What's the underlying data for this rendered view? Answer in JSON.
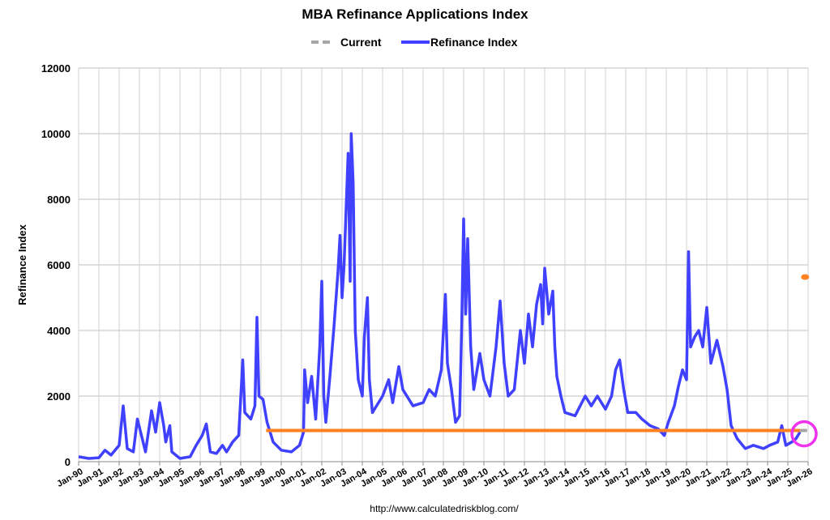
{
  "chart_data": {
    "type": "line",
    "title": "MBA Refinance Applications Index",
    "ylabel": "Refinance Index",
    "xlabel": "",
    "source": "http://www.calculatedriskblog.com/",
    "ylim": [
      0,
      12000
    ],
    "xlim": [
      1990,
      2026
    ],
    "yticks": [
      0,
      2000,
      4000,
      6000,
      8000,
      10000,
      12000
    ],
    "xtick_labels": [
      "Jan-90",
      "Jan-91",
      "Jan-92",
      "Jan-93",
      "Jan-94",
      "Jan-95",
      "Jan-96",
      "Jan-97",
      "Jan-98",
      "Jan-99",
      "Jan-00",
      "Jan-01",
      "Jan-02",
      "Jan-03",
      "Jan-04",
      "Jan-05",
      "Jan-06",
      "Jan-07",
      "Jan-08",
      "Jan-09",
      "Jan-10",
      "Jan-11",
      "Jan-12",
      "Jan-13",
      "Jan-14",
      "Jan-15",
      "Jan-16",
      "Jan-17",
      "Jan-18",
      "Jan-19",
      "Jan-20",
      "Jan-21",
      "Jan-22",
      "Jan-23",
      "Jan-24",
      "Jan-25",
      "Jan-26"
    ],
    "grid": true,
    "legend": {
      "placement": "top-center",
      "entries": [
        {
          "name": "Current",
          "color": "#a6a6a6",
          "style": "dashed"
        },
        {
          "name": "Refinance Index",
          "color": "#4040ff",
          "style": "solid"
        }
      ]
    },
    "series": [
      {
        "name": "Refinance Index",
        "color": "#4040ff",
        "points": [
          [
            1990.0,
            150
          ],
          [
            1990.5,
            100
          ],
          [
            1991.0,
            120
          ],
          [
            1991.3,
            350
          ],
          [
            1991.6,
            200
          ],
          [
            1992.0,
            500
          ],
          [
            1992.2,
            1700
          ],
          [
            1992.4,
            400
          ],
          [
            1992.7,
            300
          ],
          [
            1992.9,
            1300
          ],
          [
            1993.1,
            800
          ],
          [
            1993.3,
            300
          ],
          [
            1993.6,
            1550
          ],
          [
            1993.8,
            900
          ],
          [
            1994.0,
            1800
          ],
          [
            1994.2,
            1100
          ],
          [
            1994.3,
            600
          ],
          [
            1994.5,
            1100
          ],
          [
            1994.6,
            300
          ],
          [
            1995.0,
            100
          ],
          [
            1995.5,
            150
          ],
          [
            1995.8,
            500
          ],
          [
            1996.1,
            800
          ],
          [
            1996.3,
            1150
          ],
          [
            1996.5,
            300
          ],
          [
            1996.8,
            250
          ],
          [
            1997.1,
            500
          ],
          [
            1997.3,
            300
          ],
          [
            1997.6,
            600
          ],
          [
            1997.9,
            800
          ],
          [
            1998.1,
            3100
          ],
          [
            1998.2,
            1500
          ],
          [
            1998.5,
            1300
          ],
          [
            1998.7,
            1700
          ],
          [
            1998.8,
            4400
          ],
          [
            1998.9,
            2000
          ],
          [
            1999.1,
            1900
          ],
          [
            1999.3,
            1200
          ],
          [
            1999.6,
            600
          ],
          [
            2000.0,
            350
          ],
          [
            2000.5,
            300
          ],
          [
            2000.9,
            500
          ],
          [
            2001.1,
            900
          ],
          [
            2001.15,
            2800
          ],
          [
            2001.3,
            1800
          ],
          [
            2001.5,
            2600
          ],
          [
            2001.7,
            1300
          ],
          [
            2001.9,
            3500
          ],
          [
            2002.0,
            5500
          ],
          [
            2002.1,
            2000
          ],
          [
            2002.2,
            1200
          ],
          [
            2002.4,
            2600
          ],
          [
            2002.6,
            4100
          ],
          [
            2002.8,
            5800
          ],
          [
            2002.9,
            6900
          ],
          [
            2003.0,
            5000
          ],
          [
            2003.1,
            6000
          ],
          [
            2003.3,
            9400
          ],
          [
            2003.4,
            5500
          ],
          [
            2003.45,
            10000
          ],
          [
            2003.55,
            8500
          ],
          [
            2003.65,
            4000
          ],
          [
            2003.8,
            2500
          ],
          [
            2004.0,
            2000
          ],
          [
            2004.1,
            3800
          ],
          [
            2004.25,
            5000
          ],
          [
            2004.35,
            2500
          ],
          [
            2004.5,
            1500
          ],
          [
            2005.0,
            2000
          ],
          [
            2005.3,
            2500
          ],
          [
            2005.5,
            1800
          ],
          [
            2005.8,
            2900
          ],
          [
            2006.0,
            2200
          ],
          [
            2006.5,
            1700
          ],
          [
            2007.0,
            1800
          ],
          [
            2007.3,
            2200
          ],
          [
            2007.6,
            2000
          ],
          [
            2007.9,
            2800
          ],
          [
            2008.1,
            5100
          ],
          [
            2008.2,
            3000
          ],
          [
            2008.4,
            2200
          ],
          [
            2008.6,
            1200
          ],
          [
            2008.8,
            1400
          ],
          [
            2008.9,
            4000
          ],
          [
            2009.0,
            7400
          ],
          [
            2009.1,
            4500
          ],
          [
            2009.2,
            6800
          ],
          [
            2009.35,
            3500
          ],
          [
            2009.5,
            2200
          ],
          [
            2009.8,
            3300
          ],
          [
            2010.0,
            2500
          ],
          [
            2010.3,
            2000
          ],
          [
            2010.6,
            3500
          ],
          [
            2010.8,
            4900
          ],
          [
            2011.0,
            3000
          ],
          [
            2011.2,
            2000
          ],
          [
            2011.5,
            2200
          ],
          [
            2011.8,
            4000
          ],
          [
            2012.0,
            3000
          ],
          [
            2012.2,
            4500
          ],
          [
            2012.4,
            3500
          ],
          [
            2012.6,
            4800
          ],
          [
            2012.8,
            5400
          ],
          [
            2012.9,
            4200
          ],
          [
            2013.0,
            5900
          ],
          [
            2013.2,
            4500
          ],
          [
            2013.4,
            5200
          ],
          [
            2013.5,
            3500
          ],
          [
            2013.6,
            2600
          ],
          [
            2013.8,
            2000
          ],
          [
            2014.0,
            1500
          ],
          [
            2014.5,
            1400
          ],
          [
            2015.0,
            2000
          ],
          [
            2015.3,
            1700
          ],
          [
            2015.6,
            2000
          ],
          [
            2016.0,
            1600
          ],
          [
            2016.3,
            2000
          ],
          [
            2016.5,
            2800
          ],
          [
            2016.7,
            3100
          ],
          [
            2016.9,
            2200
          ],
          [
            2017.1,
            1500
          ],
          [
            2017.5,
            1500
          ],
          [
            2017.8,
            1300
          ],
          [
            2018.2,
            1100
          ],
          [
            2018.6,
            1000
          ],
          [
            2018.9,
            800
          ],
          [
            2019.1,
            1200
          ],
          [
            2019.4,
            1700
          ],
          [
            2019.6,
            2300
          ],
          [
            2019.8,
            2800
          ],
          [
            2020.0,
            2500
          ],
          [
            2020.1,
            6400
          ],
          [
            2020.2,
            3500
          ],
          [
            2020.4,
            3800
          ],
          [
            2020.6,
            4000
          ],
          [
            2020.8,
            3500
          ],
          [
            2021.0,
            4700
          ],
          [
            2021.2,
            3000
          ],
          [
            2021.5,
            3700
          ],
          [
            2021.8,
            2900
          ],
          [
            2022.0,
            2200
          ],
          [
            2022.2,
            1100
          ],
          [
            2022.5,
            700
          ],
          [
            2022.9,
            400
          ],
          [
            2023.3,
            500
          ],
          [
            2023.8,
            400
          ],
          [
            2024.1,
            500
          ],
          [
            2024.5,
            600
          ],
          [
            2024.7,
            1100
          ],
          [
            2024.9,
            500
          ],
          [
            2025.2,
            600
          ],
          [
            2025.4,
            700
          ],
          [
            2025.6,
            900
          ]
        ]
      },
      {
        "name": "Current",
        "color": "#a6a6a6",
        "points": [
          [
            2025.6,
            950
          ],
          [
            2025.95,
            950
          ]
        ]
      },
      {
        "name": "Reference level",
        "color": "#ff8020",
        "points": [
          [
            1999.25,
            950
          ],
          [
            2025.7,
            950
          ]
        ]
      },
      {
        "name": "Marker",
        "color": "#ff8020",
        "points": [
          [
            2025.85,
            5630
          ]
        ]
      }
    ],
    "highlight": {
      "color": "#ee33ee",
      "x": 2025.8,
      "y": 850
    }
  }
}
